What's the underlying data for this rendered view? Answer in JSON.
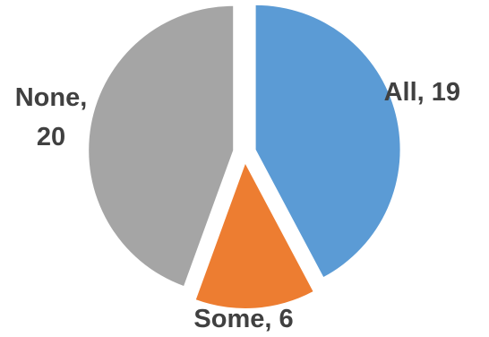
{
  "chart_data": {
    "type": "pie",
    "slices": [
      {
        "category": "All",
        "value": 19,
        "color": "#5b9bd5",
        "label": "All, 19"
      },
      {
        "category": "Some",
        "value": 6,
        "color": "#ed7d31",
        "label": "Some, 6"
      },
      {
        "category": "None",
        "value": 20,
        "color": "#a5a5a5",
        "label_lines": [
          "None,",
          "20"
        ]
      }
    ],
    "start": "12 o'clock",
    "direction": "clockwise",
    "exploded": true,
    "legend": "none"
  }
}
